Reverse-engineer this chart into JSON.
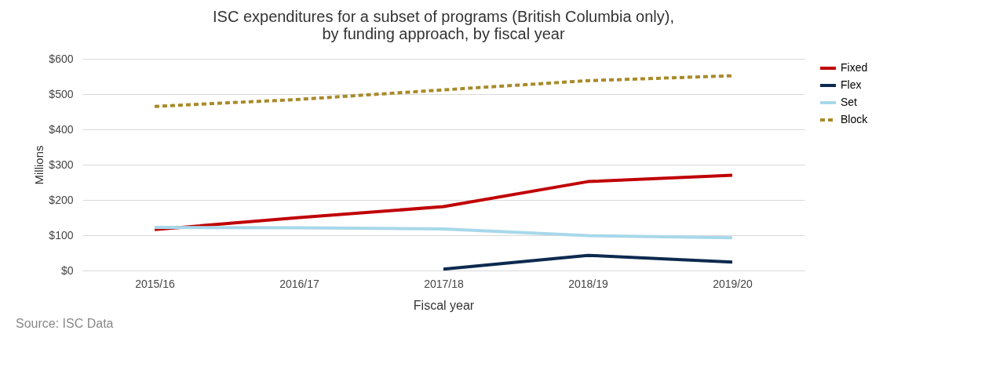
{
  "chart_data": {
    "type": "line",
    "title": "ISC expenditures for a subset of programs (British Columbia only),\nby funding approach, by fiscal year",
    "xlabel": "Fiscal year",
    "ylabel": "Millions",
    "categories": [
      "2015/16",
      "2016/17",
      "2017/18",
      "2018/19",
      "2019/20"
    ],
    "series": [
      {
        "name": "Fixed",
        "color": "#c00000",
        "values": [
          116,
          150,
          181,
          252,
          270
        ]
      },
      {
        "name": "Flex",
        "color": "#0d2a4f",
        "values": [
          null,
          null,
          4,
          43,
          24
        ]
      },
      {
        "name": "Set",
        "color": "#a8d8ea",
        "values": [
          122,
          121,
          118,
          99,
          93
        ]
      },
      {
        "name": "Block",
        "color": "#a88a2a",
        "values": [
          465,
          485,
          512,
          538,
          552
        ],
        "line_style": "dashed"
      }
    ],
    "ylim": [
      0,
      600
    ],
    "yticks": [
      {
        "value": 0,
        "label": "$0"
      },
      {
        "value": 100,
        "label": "$100"
      },
      {
        "value": 200,
        "label": "$200"
      },
      {
        "value": 300,
        "label": "$300"
      },
      {
        "value": 400,
        "label": "$400"
      },
      {
        "value": 500,
        "label": "$500"
      },
      {
        "value": 600,
        "label": "$600"
      }
    ],
    "grid": "y",
    "legend": "right",
    "annotations": [
      "Source: ISC Data"
    ]
  }
}
